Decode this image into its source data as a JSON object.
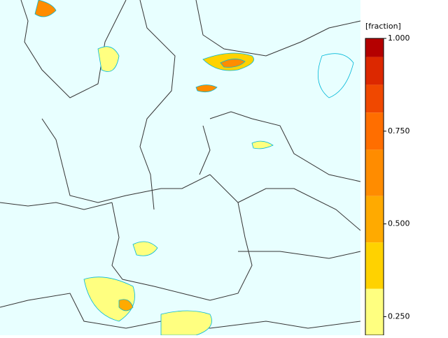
{
  "legend": {
    "title": "[fraction]",
    "ticks": [
      {
        "value": 1.0,
        "label": "1.000"
      },
      {
        "value": 0.75,
        "label": "0.750"
      },
      {
        "value": 0.5,
        "label": "0.500"
      },
      {
        "value": 0.25,
        "label": "0.250"
      }
    ],
    "bands": [
      {
        "from": 0.95,
        "to": 1.0,
        "color": "#b40000"
      },
      {
        "from": 0.875,
        "to": 0.95,
        "color": "#dc2800"
      },
      {
        "from": 0.8,
        "to": 0.875,
        "color": "#f04800"
      },
      {
        "from": 0.7,
        "to": 0.8,
        "color": "#ff6e00"
      },
      {
        "from": 0.575,
        "to": 0.7,
        "color": "#ff8c00"
      },
      {
        "from": 0.45,
        "to": 0.575,
        "color": "#ffaa00"
      },
      {
        "from": 0.325,
        "to": 0.45,
        "color": "#ffd200"
      },
      {
        "from": 0.2,
        "to": 0.325,
        "color": "#ffff80"
      }
    ]
  }
}
